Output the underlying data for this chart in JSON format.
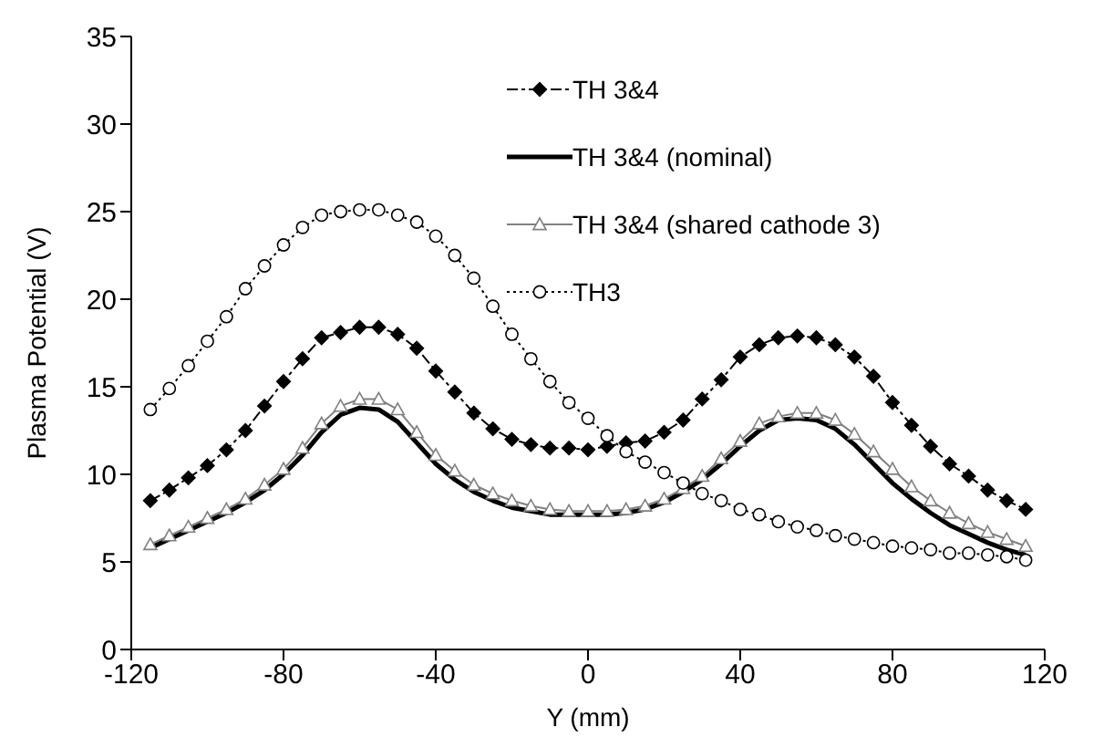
{
  "chart_data": {
    "type": "line",
    "xlabel": "Y (mm)",
    "ylabel": "Plasma Potential (V)",
    "x": [
      -115,
      -110,
      -105,
      -100,
      -95,
      -90,
      -85,
      -80,
      -75,
      -70,
      -65,
      -60,
      -55,
      -50,
      -45,
      -40,
      -35,
      -30,
      -25,
      -20,
      -15,
      -10,
      -5,
      0,
      5,
      10,
      15,
      20,
      25,
      30,
      35,
      40,
      45,
      50,
      55,
      60,
      65,
      70,
      75,
      80,
      85,
      90,
      95,
      100,
      105,
      110,
      115
    ],
    "xlim": [
      -120,
      120
    ],
    "xticks": [
      -120,
      -80,
      -40,
      0,
      40,
      80,
      120
    ],
    "ylim": [
      0,
      35
    ],
    "yticks": [
      0,
      5,
      10,
      15,
      20,
      25,
      30,
      35
    ],
    "grid": false,
    "legend": "top right",
    "series": [
      {
        "name": "TH 3&4",
        "color": "#000000",
        "marker": "diamond",
        "line_style": "dashed",
        "values": [
          8.5,
          9.1,
          9.8,
          10.5,
          11.4,
          12.5,
          13.9,
          15.3,
          16.6,
          17.8,
          18.1,
          18.4,
          18.4,
          18.0,
          17.2,
          15.9,
          14.7,
          13.5,
          12.6,
          12.0,
          11.7,
          11.5,
          11.5,
          11.4,
          11.6,
          11.8,
          11.9,
          12.4,
          13.1,
          14.3,
          15.4,
          16.7,
          17.4,
          17.8,
          17.9,
          17.8,
          17.4,
          16.7,
          15.6,
          14.1,
          12.8,
          11.6,
          10.6,
          9.9,
          9.1,
          8.5,
          8.0
        ]
      },
      {
        "name": "TH 3&4 (nominal)",
        "color": "#000000",
        "marker": "none",
        "line_style": "solid",
        "values": [
          5.8,
          6.3,
          6.8,
          7.3,
          7.8,
          8.4,
          9.1,
          10.0,
          11.1,
          12.4,
          13.4,
          13.8,
          13.7,
          13.0,
          11.8,
          10.6,
          9.7,
          9.0,
          8.5,
          8.1,
          7.9,
          7.7,
          7.7,
          7.7,
          7.7,
          7.8,
          8.0,
          8.4,
          9.0,
          9.7,
          10.6,
          11.6,
          12.5,
          13.1,
          13.2,
          13.1,
          12.6,
          11.7,
          10.6,
          9.5,
          8.6,
          7.8,
          7.1,
          6.6,
          6.1,
          5.7,
          5.4
        ]
      },
      {
        "name": "TH 3&4 (shared cathode 3)",
        "color": "#808080",
        "marker": "triangle",
        "line_style": "solid",
        "values": [
          6.0,
          6.5,
          7.0,
          7.5,
          8.0,
          8.6,
          9.4,
          10.3,
          11.5,
          12.9,
          13.9,
          14.3,
          14.3,
          13.7,
          12.4,
          11.1,
          10.2,
          9.4,
          8.9,
          8.5,
          8.2,
          8.0,
          7.9,
          7.9,
          7.9,
          8.0,
          8.2,
          8.6,
          9.2,
          9.9,
          10.9,
          11.9,
          12.9,
          13.3,
          13.5,
          13.5,
          13.1,
          12.3,
          11.3,
          10.3,
          9.3,
          8.5,
          7.8,
          7.2,
          6.7,
          6.3,
          5.9
        ]
      },
      {
        "name": "TH3",
        "color": "#000000",
        "marker": "circle",
        "line_style": "dotted",
        "values": [
          13.7,
          14.9,
          16.2,
          17.6,
          19.0,
          20.6,
          21.9,
          23.1,
          24.1,
          24.8,
          25.0,
          25.1,
          25.1,
          24.8,
          24.4,
          23.6,
          22.5,
          21.2,
          19.6,
          18.0,
          16.6,
          15.3,
          14.1,
          13.2,
          12.2,
          11.3,
          10.7,
          10.1,
          9.5,
          8.9,
          8.5,
          8.0,
          7.7,
          7.3,
          7.0,
          6.8,
          6.5,
          6.3,
          6.1,
          5.9,
          5.8,
          5.7,
          5.5,
          5.5,
          5.4,
          5.3,
          5.1
        ]
      }
    ]
  }
}
